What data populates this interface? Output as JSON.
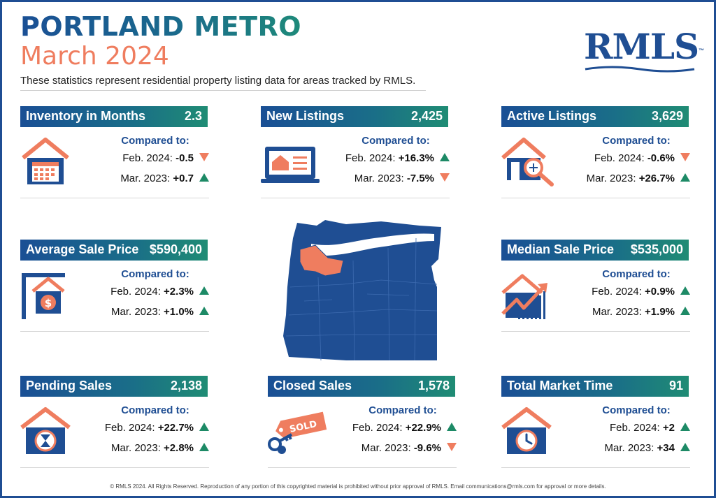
{
  "header": {
    "title": "PORTLAND METRO",
    "subtitle": "March 2024",
    "description": "These statistics represent residential property listing data for areas tracked by RMLS.",
    "logo": "RMLS",
    "logo_mark": "™"
  },
  "compared_label": "Compared to:",
  "cards": {
    "inventory": {
      "label": "Inventory in Months",
      "value": "2.3",
      "icon": "house-calendar-icon",
      "feb_label": "Feb. 2024:",
      "feb_value": "-0.5",
      "feb_dir": "down",
      "mar_label": "Mar. 2023:",
      "mar_value": "+0.7",
      "mar_dir": "up"
    },
    "new_listings": {
      "label": "New Listings",
      "value": "2,425",
      "icon": "laptop-listing-icon",
      "feb_label": "Feb. 2024:",
      "feb_value": "+16.3%",
      "feb_dir": "up",
      "mar_label": "Mar. 2023:",
      "mar_value": "-7.5%",
      "mar_dir": "down"
    },
    "active_listings": {
      "label": "Active Listings",
      "value": "3,629",
      "icon": "house-magnifier-icon",
      "feb_label": "Feb. 2024:",
      "feb_value": "-0.6%",
      "feb_dir": "down",
      "mar_label": "Mar. 2023:",
      "mar_value": "+26.7%",
      "mar_dir": "up"
    },
    "avg_price": {
      "label": "Average Sale Price",
      "value": "$590,400",
      "icon": "sale-sign-icon",
      "feb_label": "Feb. 2024:",
      "feb_value": "+2.3%",
      "feb_dir": "up",
      "mar_label": "Mar. 2023:",
      "mar_value": "+1.0%",
      "mar_dir": "up"
    },
    "median_price": {
      "label": "Median Sale Price",
      "value": "$535,000",
      "icon": "house-growth-chart-icon",
      "feb_label": "Feb. 2024:",
      "feb_value": "+0.9%",
      "feb_dir": "up",
      "mar_label": "Mar. 2023:",
      "mar_value": "+1.9%",
      "mar_dir": "up"
    },
    "pending": {
      "label": "Pending Sales",
      "value": "2,138",
      "icon": "house-hourglass-icon",
      "feb_label": "Feb. 2024:",
      "feb_value": "+22.7%",
      "feb_dir": "up",
      "mar_label": "Mar. 2023:",
      "mar_value": "+2.8%",
      "mar_dir": "up"
    },
    "closed": {
      "label": "Closed Sales",
      "value": "1,578",
      "icon": "sold-tag-keys-icon",
      "tag_text": "SOLD",
      "feb_label": "Feb. 2024:",
      "feb_value": "+22.9%",
      "feb_dir": "up",
      "mar_label": "Mar. 2023:",
      "mar_value": "-9.6%",
      "mar_dir": "down"
    },
    "market_time": {
      "label": "Total Market Time",
      "value": "91",
      "icon": "house-clock-icon",
      "feb_label": "Feb. 2024:",
      "feb_value": "+2",
      "feb_dir": "up",
      "mar_label": "Mar. 2023:",
      "mar_value": "+34",
      "mar_dir": "up"
    }
  },
  "map": {
    "icon": "oregon-map-icon"
  },
  "footer": "© RMLS 2024. All Rights Reserved. Reproduction of any portion of this copyrighted material is prohibited without prior approval of RMLS. Email communications@rmls.com for approval or more details.",
  "colors": {
    "navy": "#1f4e93",
    "teal": "#1f8c74",
    "coral": "#ef7d5f",
    "up": "#1d8a66",
    "down": "#ef7d5f"
  }
}
